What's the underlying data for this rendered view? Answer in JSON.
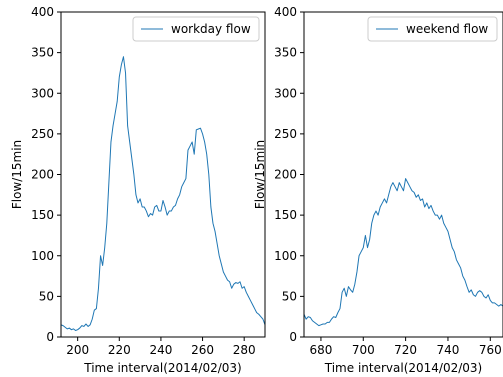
{
  "chart_data": [
    {
      "type": "line",
      "xlabel": "Time interval(2014/02/03)",
      "ylabel": "Flow/15min",
      "xlim": [
        192,
        290
      ],
      "ylim": [
        0,
        400
      ],
      "xticks": [
        200,
        220,
        240,
        260,
        280
      ],
      "yticks": [
        0,
        50,
        100,
        150,
        200,
        250,
        300,
        350,
        400
      ],
      "grid": false,
      "legend_position": "top-right",
      "series": [
        {
          "name": "workday flow",
          "color": "#1f77b4",
          "x": [
            192,
            193,
            194,
            195,
            196,
            197,
            198,
            199,
            200,
            201,
            202,
            203,
            204,
            205,
            206,
            207,
            208,
            209,
            210,
            211,
            212,
            213,
            214,
            215,
            216,
            217,
            218,
            219,
            220,
            221,
            222,
            223,
            224,
            225,
            226,
            227,
            228,
            229,
            230,
            231,
            232,
            233,
            234,
            235,
            236,
            237,
            238,
            239,
            240,
            241,
            242,
            243,
            244,
            245,
            246,
            247,
            248,
            249,
            250,
            251,
            252,
            253,
            254,
            255,
            256,
            257,
            258,
            259,
            260,
            261,
            262,
            263,
            264,
            265,
            266,
            267,
            268,
            269,
            270,
            271,
            272,
            273,
            274,
            275,
            276,
            277,
            278,
            279,
            280,
            281,
            282,
            283,
            284,
            285,
            286,
            287,
            288,
            289,
            290
          ],
          "y": [
            15,
            14,
            12,
            10,
            11,
            9,
            10,
            8,
            9,
            11,
            14,
            13,
            16,
            13,
            15,
            22,
            33,
            35,
            60,
            100,
            88,
            110,
            140,
            190,
            240,
            260,
            275,
            290,
            320,
            335,
            345,
            325,
            260,
            240,
            220,
            200,
            175,
            165,
            170,
            160,
            160,
            155,
            148,
            152,
            150,
            160,
            162,
            155,
            155,
            168,
            160,
            150,
            155,
            155,
            160,
            162,
            170,
            175,
            185,
            190,
            195,
            230,
            235,
            240,
            225,
            255,
            256,
            257,
            250,
            240,
            225,
            200,
            160,
            140,
            130,
            115,
            100,
            90,
            80,
            75,
            70,
            68,
            60,
            65,
            67,
            66,
            68,
            60,
            62,
            55,
            50,
            45,
            40,
            35,
            30,
            28,
            25,
            22,
            15
          ]
        }
      ]
    },
    {
      "type": "line",
      "xlabel": "Time interval(2014/02/03)",
      "ylabel": "Flow/15min",
      "xlim": [
        672,
        766
      ],
      "ylim": [
        0,
        400
      ],
      "xticks": [
        680,
        700,
        720,
        740,
        760
      ],
      "yticks": [
        0,
        50,
        100,
        150,
        200,
        250,
        300,
        350,
        400
      ],
      "grid": false,
      "legend_position": "top-right",
      "series": [
        {
          "name": "weekend flow",
          "color": "#1f77b4",
          "x": [
            672,
            673,
            674,
            675,
            676,
            677,
            678,
            679,
            680,
            681,
            682,
            683,
            684,
            685,
            686,
            687,
            688,
            689,
            690,
            691,
            692,
            693,
            694,
            695,
            696,
            697,
            698,
            699,
            700,
            701,
            702,
            703,
            704,
            705,
            706,
            707,
            708,
            709,
            710,
            711,
            712,
            713,
            714,
            715,
            716,
            717,
            718,
            719,
            720,
            721,
            722,
            723,
            724,
            725,
            726,
            727,
            728,
            729,
            730,
            731,
            732,
            733,
            734,
            735,
            736,
            737,
            738,
            739,
            740,
            741,
            742,
            743,
            744,
            745,
            746,
            747,
            748,
            749,
            750,
            751,
            752,
            753,
            754,
            755,
            756,
            757,
            758,
            759,
            760,
            761,
            762,
            763,
            764,
            765,
            766
          ],
          "y": [
            28,
            22,
            25,
            24,
            20,
            18,
            16,
            14,
            15,
            16,
            16,
            18,
            18,
            22,
            25,
            24,
            30,
            35,
            55,
            60,
            50,
            62,
            58,
            55,
            65,
            80,
            100,
            105,
            110,
            125,
            110,
            120,
            140,
            150,
            155,
            150,
            160,
            165,
            170,
            165,
            175,
            185,
            190,
            185,
            180,
            190,
            185,
            180,
            195,
            190,
            185,
            180,
            178,
            172,
            175,
            168,
            170,
            160,
            165,
            158,
            162,
            155,
            150,
            150,
            145,
            150,
            140,
            135,
            130,
            120,
            110,
            105,
            95,
            90,
            85,
            75,
            70,
            62,
            55,
            58,
            52,
            50,
            55,
            57,
            55,
            50,
            48,
            52,
            45,
            42,
            42,
            40,
            38,
            40,
            38
          ]
        }
      ]
    }
  ]
}
